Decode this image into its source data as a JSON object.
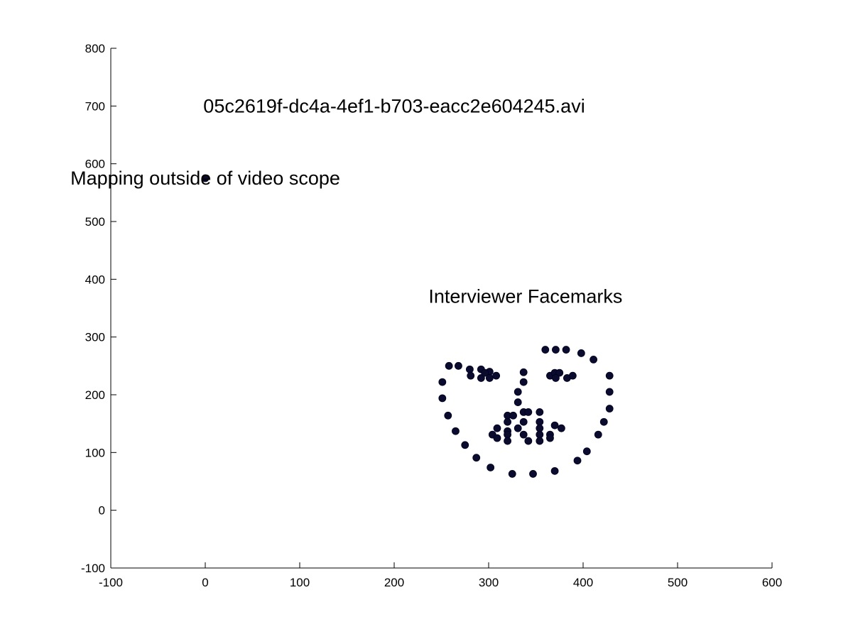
{
  "chart_data": {
    "type": "scatter",
    "title": "",
    "xlabel": "",
    "ylabel": "",
    "xlim": [
      -100,
      600
    ],
    "ylim": [
      -100,
      800
    ],
    "xticks": [
      -100,
      0,
      100,
      200,
      300,
      400,
      500,
      600
    ],
    "yticks": [
      -100,
      0,
      100,
      200,
      300,
      400,
      500,
      600,
      700,
      800
    ],
    "grid": false,
    "colors": {
      "marker": "#0b0b2e",
      "axis": "#000000",
      "background": "#ffffff"
    },
    "annotations": [
      {
        "text": "05c2619f-dc4a-4ef1-b703-eacc2e604245.avi",
        "x": 200,
        "y": 700
      },
      {
        "text": "Mapping outside of video scope",
        "x": 0,
        "y": 575
      },
      {
        "text": "Interviewer Facemarks",
        "x": 339,
        "y": 370
      }
    ],
    "series": [
      {
        "points": [
          [
            0,
            575
          ],
          [
            251,
            222
          ],
          [
            251,
            194
          ],
          [
            257,
            164
          ],
          [
            265,
            137
          ],
          [
            275,
            113
          ],
          [
            287,
            91
          ],
          [
            302,
            74
          ],
          [
            325,
            63
          ],
          [
            347,
            63
          ],
          [
            370,
            68
          ],
          [
            394,
            86
          ],
          [
            404,
            102
          ],
          [
            416,
            131
          ],
          [
            422,
            153
          ],
          [
            428,
            176
          ],
          [
            428,
            205
          ],
          [
            428,
            233
          ],
          [
            411,
            261
          ],
          [
            398,
            272
          ],
          [
            382,
            278
          ],
          [
            371,
            278
          ],
          [
            360,
            278
          ],
          [
            258,
            250
          ],
          [
            268,
            250
          ],
          [
            280,
            244
          ],
          [
            292,
            244
          ],
          [
            301,
            240
          ],
          [
            281,
            233
          ],
          [
            292,
            229
          ],
          [
            301,
            229
          ],
          [
            308,
            233
          ],
          [
            296,
            238
          ],
          [
            365,
            233
          ],
          [
            370,
            238
          ],
          [
            375,
            238
          ],
          [
            383,
            229
          ],
          [
            389,
            233
          ],
          [
            371,
            229
          ],
          [
            337,
            239
          ],
          [
            337,
            222
          ],
          [
            331,
            205
          ],
          [
            331,
            187
          ],
          [
            320,
            164
          ],
          [
            326,
            164
          ],
          [
            337,
            170
          ],
          [
            342,
            170
          ],
          [
            354,
            170
          ],
          [
            320,
            153
          ],
          [
            337,
            153
          ],
          [
            354,
            153
          ],
          [
            309,
            142
          ],
          [
            320,
            137
          ],
          [
            331,
            142
          ],
          [
            354,
            142
          ],
          [
            370,
            147
          ],
          [
            377,
            142
          ],
          [
            304,
            131
          ],
          [
            309,
            125
          ],
          [
            320,
            131
          ],
          [
            337,
            131
          ],
          [
            354,
            131
          ],
          [
            365,
            131
          ],
          [
            320,
            120
          ],
          [
            342,
            120
          ],
          [
            354,
            120
          ],
          [
            365,
            125
          ]
        ]
      }
    ]
  }
}
